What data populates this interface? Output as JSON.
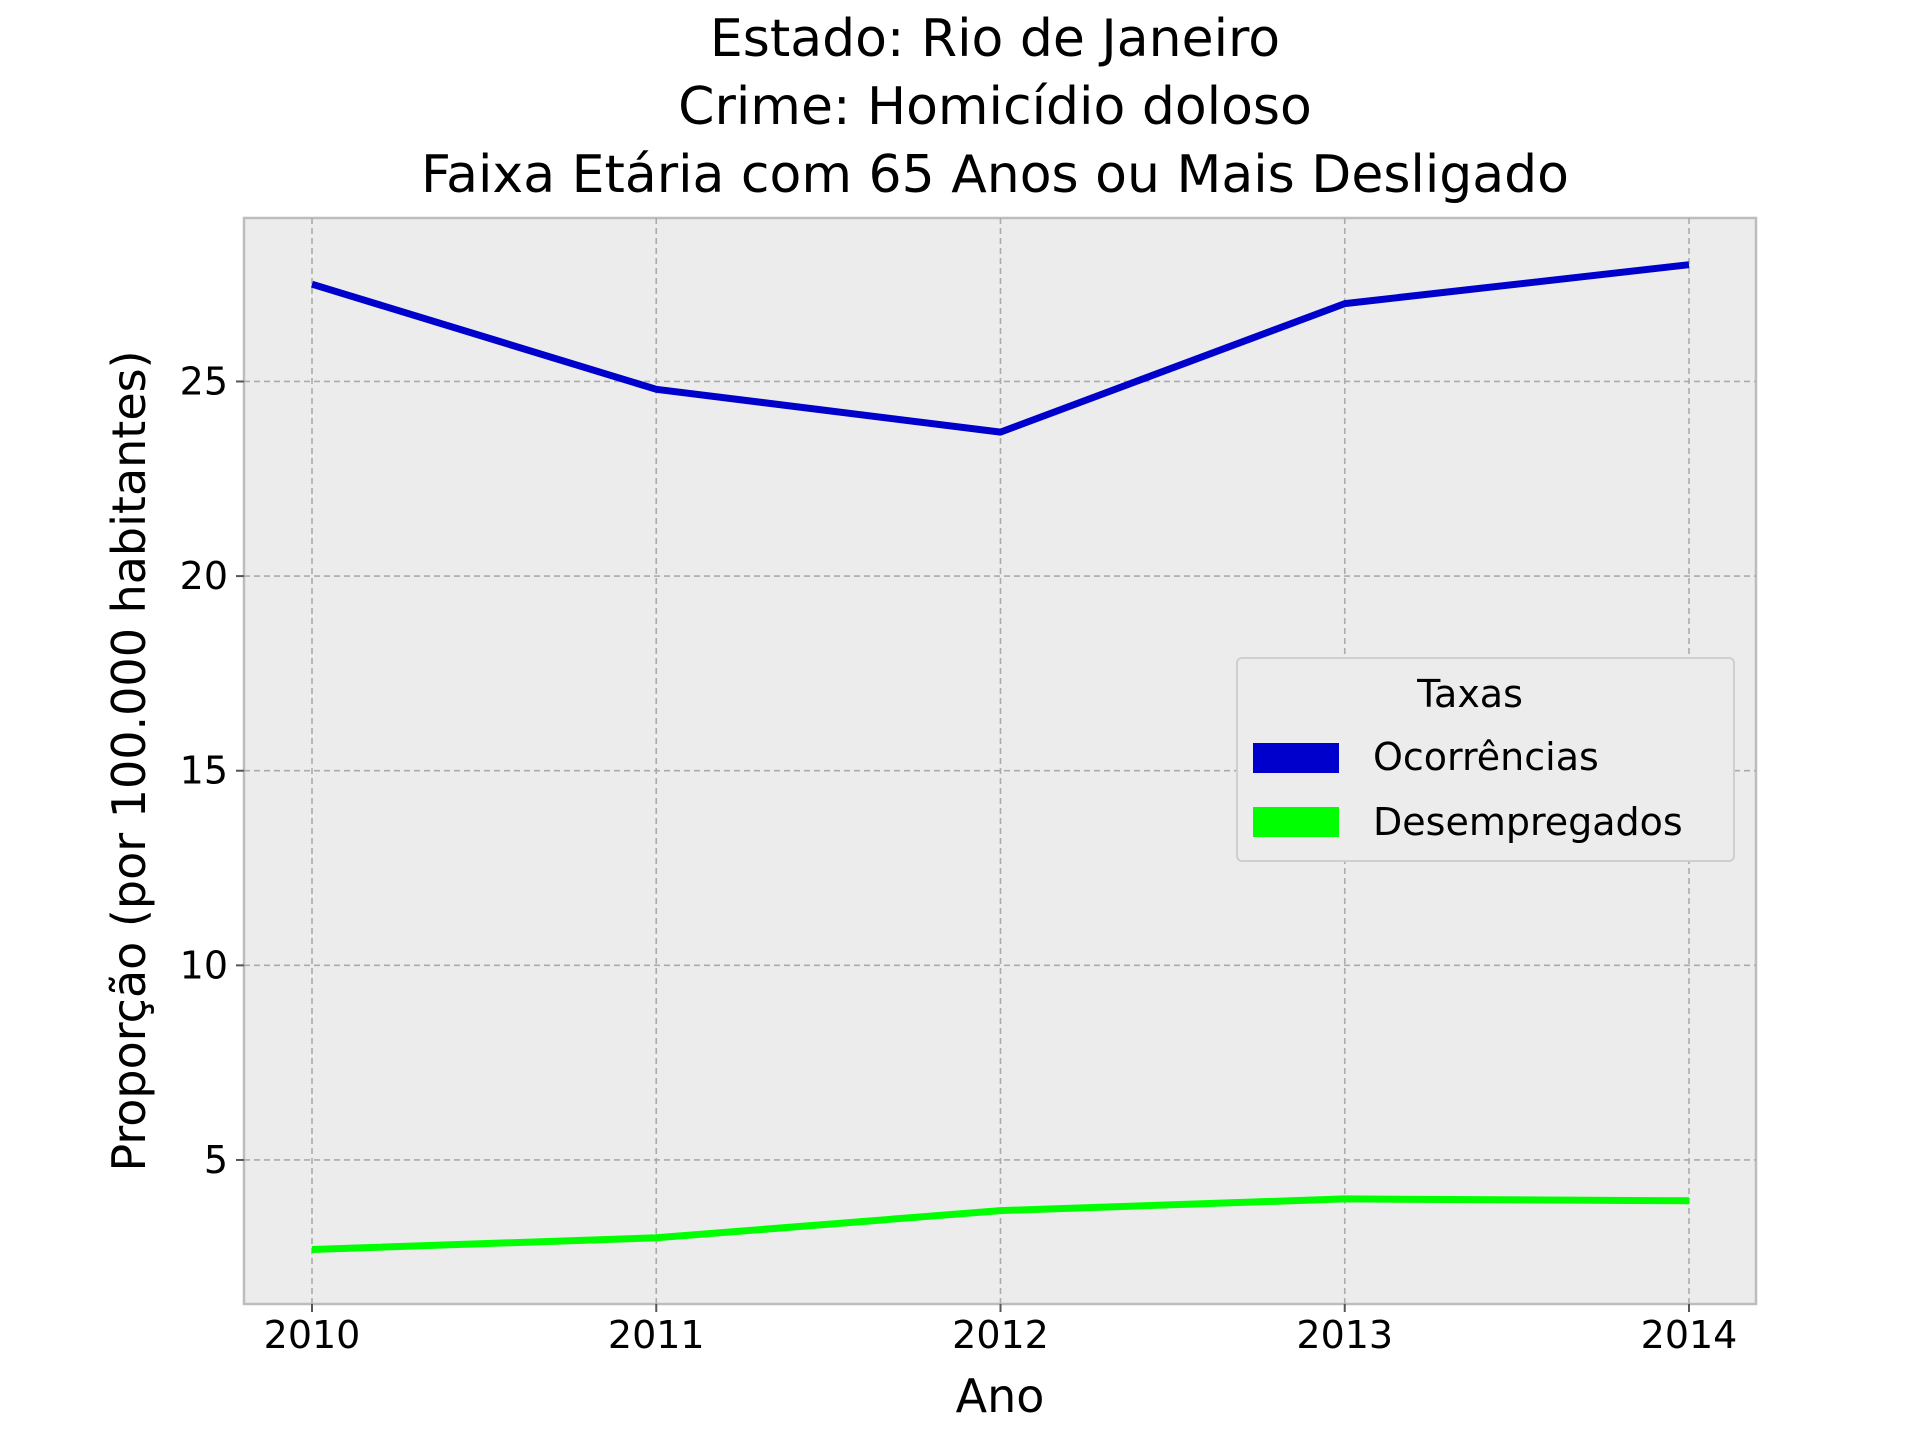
{
  "chart_data": {
    "type": "line",
    "title_lines": [
      "Estado: Rio de Janeiro",
      "Crime: Homicídio doloso",
      "Faixa Etária com 65 Anos ou Mais   Desligado"
    ],
    "xlabel": "Ano",
    "ylabel": "Proporção (por 100.000 habitantes)",
    "x": [
      2010,
      2011,
      2012,
      2013,
      2014
    ],
    "xticks": [
      "2010",
      "2011",
      "2012",
      "2013",
      "2014"
    ],
    "yticks": [
      "5",
      "10",
      "15",
      "20",
      "25"
    ],
    "ylim": [
      1.3,
      29.2
    ],
    "grid": true,
    "legend": {
      "title": "Taxas",
      "position": "center-right"
    },
    "series": [
      {
        "name": "Ocorrências",
        "color": "#0000cc",
        "values": [
          27.5,
          24.8,
          23.7,
          27.0,
          28.0
        ]
      },
      {
        "name": "Desempregados",
        "color": "#00ff00",
        "values": [
          2.7,
          3.0,
          3.7,
          4.0,
          3.95
        ]
      }
    ]
  }
}
